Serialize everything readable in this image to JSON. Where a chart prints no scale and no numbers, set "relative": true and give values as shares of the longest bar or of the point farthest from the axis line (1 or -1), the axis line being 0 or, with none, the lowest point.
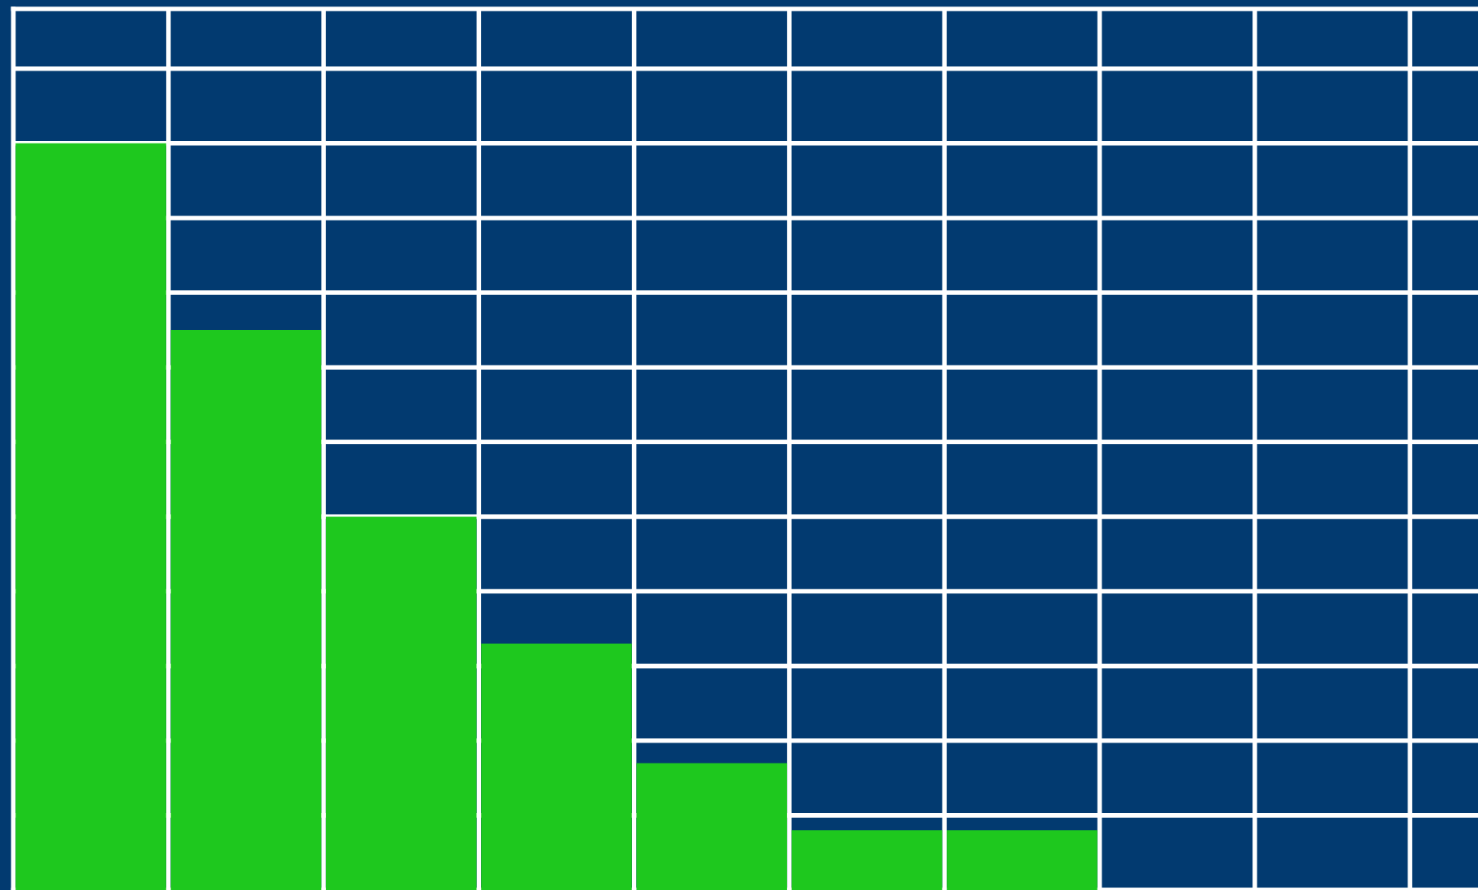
{
  "chart_data": {
    "type": "bar",
    "relative": true,
    "categories": [
      null,
      null,
      null,
      null,
      null,
      null,
      null
    ],
    "values": [
      1,
      0.75,
      0.5,
      0.33,
      0.17,
      0.08,
      0.08
    ],
    "color": "#1ec81e",
    "grid": true
  }
}
